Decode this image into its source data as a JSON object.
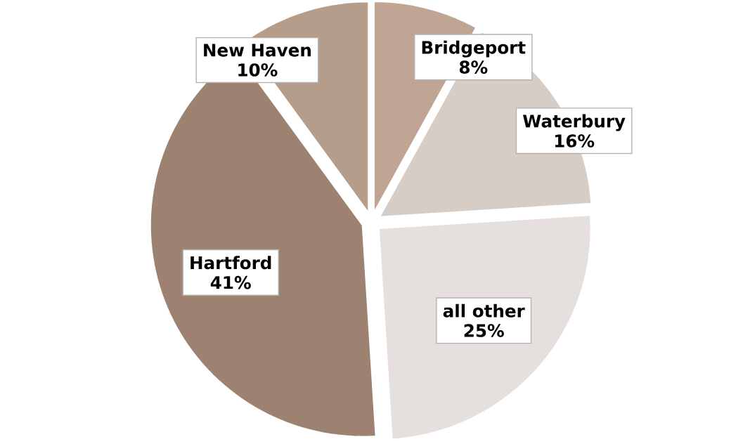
{
  "chart_data": {
    "type": "pie",
    "categories": [
      "Bridgeport",
      "Waterbury",
      "all other",
      "Hartford",
      "New Haven"
    ],
    "values": [
      8,
      16,
      25,
      41,
      10
    ],
    "value_labels": [
      "8%",
      "16%",
      "25%",
      "41%",
      "10%"
    ],
    "colors": [
      "#c0a594",
      "#d7cdc7",
      "#e5e0de",
      "#9d8171",
      "#b59d8c"
    ]
  }
}
